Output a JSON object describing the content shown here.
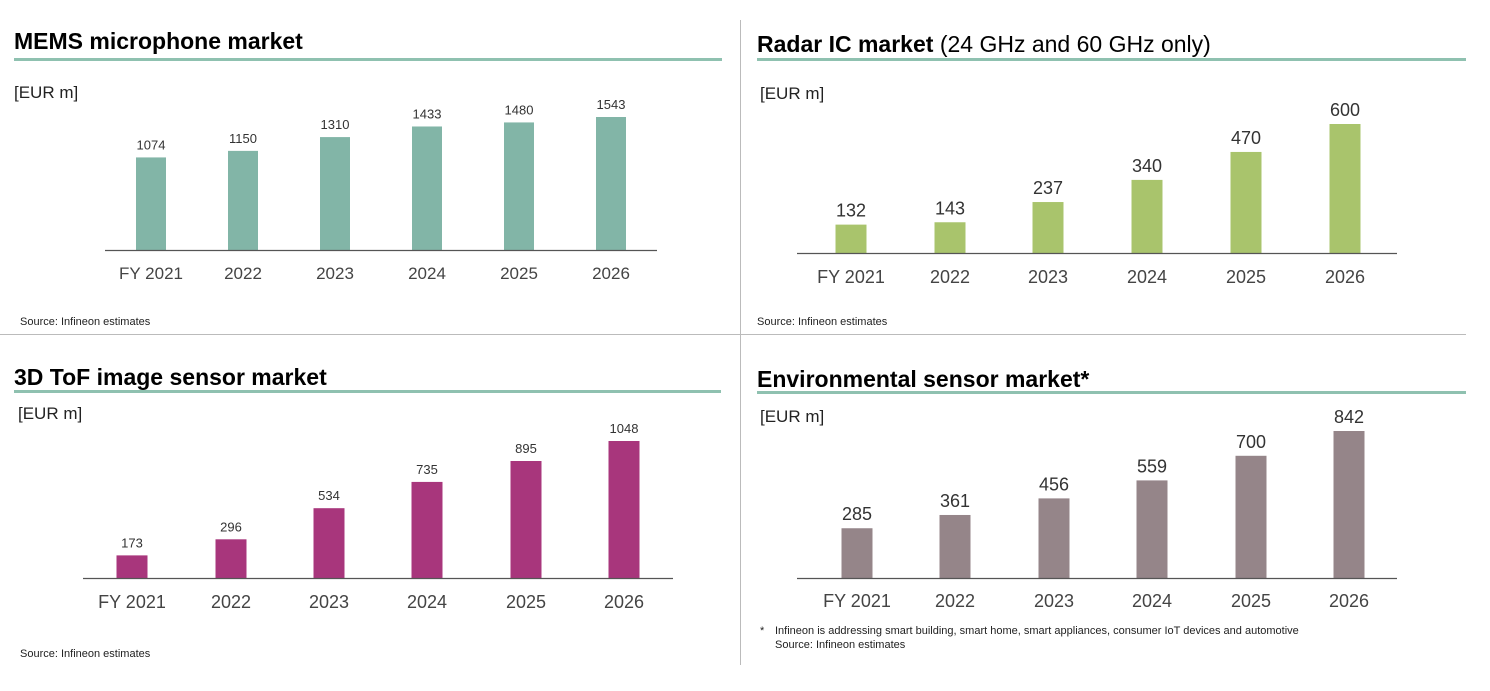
{
  "colors": {
    "rule": "#8fc1b0",
    "axis": "#555555"
  },
  "chart_data": [
    {
      "type": "bar",
      "title": "MEMS microphone market",
      "ylabel": "[EUR m]",
      "color": "#82b5a7",
      "categories": [
        "FY 2021",
        "2022",
        "2023",
        "2024",
        "2025",
        "2026"
      ],
      "values": [
        1074,
        1150,
        1310,
        1433,
        1480,
        1543
      ],
      "source": "Source: Infineon estimates"
    },
    {
      "type": "bar",
      "title": "Radar IC market",
      "title_suffix": "(24 GHz and 60 GHz only)",
      "ylabel": "[EUR m]",
      "color": "#a9c46c",
      "categories": [
        "FY 2021",
        "2022",
        "2023",
        "2024",
        "2025",
        "2026"
      ],
      "values": [
        132,
        143,
        237,
        340,
        470,
        600
      ],
      "source": "Source: Infineon estimates"
    },
    {
      "type": "bar",
      "title": "3D ToF image sensor market",
      "ylabel": "[EUR m]",
      "color": "#a8367c",
      "categories": [
        "FY 2021",
        "2022",
        "2023",
        "2024",
        "2025",
        "2026"
      ],
      "values": [
        173,
        296,
        534,
        735,
        895,
        1048
      ],
      "source": "Source: Infineon estimates"
    },
    {
      "type": "bar",
      "title": "Environmental sensor market*",
      "ylabel": "[EUR m]",
      "color": "#958589",
      "categories": [
        "FY 2021",
        "2022",
        "2023",
        "2024",
        "2025",
        "2026"
      ],
      "values": [
        285,
        361,
        456,
        559,
        700,
        842
      ],
      "footnote": "Infineon is addressing smart building, smart home, smart appliances, consumer IoT devices and automotive",
      "footnote_marker": "*",
      "source": "Source: Infineon estimates"
    }
  ]
}
